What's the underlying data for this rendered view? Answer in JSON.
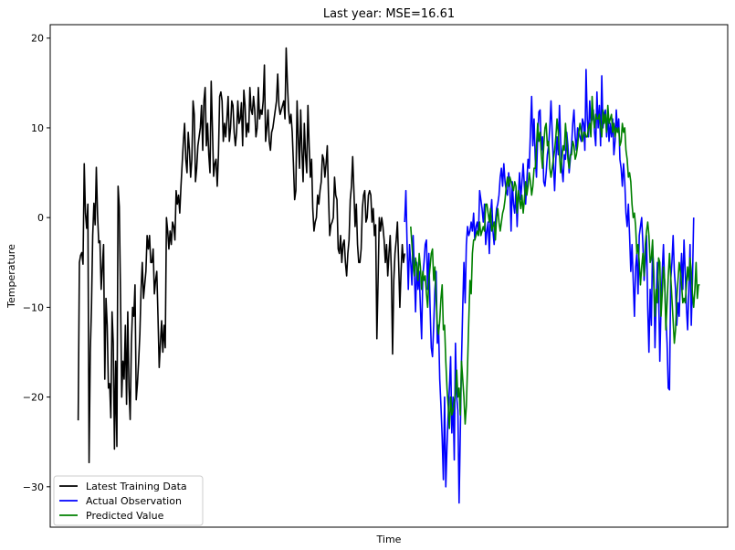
{
  "chart_data": {
    "type": "line",
    "title": "Last year: MSE=16.61",
    "xlabel": "Time",
    "ylabel": "Temperature",
    "ylim": [
      -34.5,
      21.5
    ],
    "yticks": [
      -30,
      -20,
      -10,
      0,
      10,
      20
    ],
    "xticks_visible": false,
    "grid": false,
    "legend_position": "lower-left",
    "series": [
      {
        "name": "Latest Training Data",
        "color": "#000000",
        "x_start": 0,
        "values": [
          -22.6,
          -5.0,
          -4.2,
          -3.9,
          -5.2,
          6.0,
          0.5,
          -1.2,
          1.5,
          -27.3,
          -15.0,
          -10.0,
          -2.0,
          1.6,
          -0.8,
          5.6,
          0.4,
          -2.8,
          -2.6,
          -8.0,
          -5.5,
          -3.0,
          -18.0,
          -9.0,
          -12.0,
          -19.0,
          -18.5,
          -22.3,
          -10.5,
          -14.0,
          -25.8,
          -16.0,
          -25.5,
          3.5,
          1.2,
          -8.5,
          -20.0,
          -16.0,
          -18.0,
          -12.0,
          -20.8,
          -10.5,
          -19.0,
          -22.5,
          -14.0,
          -10.0,
          -11.0,
          -7.5,
          -20.3,
          -18.5,
          -16.0,
          -13.0,
          -8.0,
          -5.0,
          -9.0,
          -7.5,
          -6.0,
          -2.0,
          -3.5,
          -2.0,
          -5.0,
          -5.0,
          -3.5,
          -8.5,
          -7.0,
          -6.0,
          -11.0,
          -16.7,
          -14.0,
          -11.5,
          -15.0,
          -12.0,
          -14.5,
          0.0,
          -1.5,
          -3.5,
          -1.5,
          -3.0,
          -0.5,
          -1.0,
          -2.5,
          3.0,
          1.5,
          2.5,
          0.5,
          3.5,
          6.0,
          8.5,
          10.5,
          6.5,
          5.0,
          9.5,
          7.5,
          4.5,
          6.5,
          13.0,
          11.5,
          4.0,
          5.5,
          8.0,
          9.0,
          10.0,
          12.5,
          7.5,
          13.0,
          14.5,
          8.0,
          10.5,
          7.0,
          5.0,
          15.2,
          10.0,
          4.6,
          6.0,
          6.5,
          3.5,
          7.0,
          13.5,
          14.0,
          13.0,
          8.5,
          10.5,
          9.0,
          11.0,
          13.5,
          8.5,
          10.0,
          13.0,
          12.5,
          9.5,
          8.0,
          9.5,
          13.0,
          10.5,
          11.0,
          12.8,
          8.0,
          14.2,
          12.5,
          9.0,
          10.5,
          9.5,
          14.5,
          12.0,
          11.5,
          13.5,
          12.0,
          9.0,
          10.0,
          14.5,
          11.0,
          12.0,
          11.5,
          13.0,
          17.0,
          8.5,
          10.0,
          12.0,
          8.5,
          7.5,
          9.5,
          10.0,
          11.0,
          12.0,
          13.0,
          16.0,
          12.5,
          11.5,
          12.0,
          12.5,
          13.0,
          11.0,
          18.9,
          15.0,
          12.0,
          10.5,
          11.5,
          9.5,
          6.0,
          2.0,
          3.0,
          13.0,
          9.0,
          5.5,
          12.0,
          7.5,
          4.0,
          10.5,
          7.0,
          5.0,
          12.5,
          8.0,
          4.5,
          6.5,
          1.0,
          -1.5,
          -0.5,
          0.0,
          2.5,
          1.5,
          3.0,
          4.0,
          7.0,
          6.5,
          4.5,
          6.0,
          8.0,
          2.5,
          -2.0,
          -0.8,
          -0.5,
          0.0,
          4.5,
          2.5,
          2.0,
          -3.5,
          -4.0,
          -2.0,
          -5.0,
          -3.0,
          -2.5,
          -5.0,
          -6.5,
          -4.0,
          -2.5,
          2.0,
          3.5,
          6.8,
          3.0,
          -1.0,
          1.5,
          -3.0,
          -5.0,
          -5.0,
          -3.5,
          1.0,
          2.5,
          3.0,
          -0.5,
          0.0,
          2.5,
          3.0,
          2.5,
          -0.5,
          1.0,
          -2.0,
          -0.8,
          -13.5,
          -7.0,
          0.0,
          -1.5,
          0.0,
          -1.0,
          -2.5,
          -5.0,
          -3.0,
          -6.5,
          -4.0,
          -2.0,
          -6.0,
          -15.2,
          -7.0,
          -4.0,
          -2.5,
          -0.5,
          -5.0,
          -10.0,
          -6.0,
          -3.0,
          -5.0,
          -4.0
        ]
      },
      {
        "name": "Actual Observation",
        "color": "#0000ff",
        "x_start": 270,
        "values": [
          -0.5,
          3.0,
          -3.0,
          -8.0,
          -3.0,
          -5.0,
          -7.5,
          -2.0,
          -6.0,
          -10.5,
          -5.0,
          -8.0,
          -6.0,
          -10.0,
          -13.5,
          -6.5,
          -5.0,
          -3.0,
          -2.5,
          -8.0,
          -4.0,
          -10.0,
          -14.5,
          -15.5,
          -12.0,
          -8.0,
          -6.0,
          -14.0,
          -12.0,
          -18.0,
          -21.0,
          -24.5,
          -29.2,
          -20.0,
          -30.0,
          -25.5,
          -22.0,
          -19.0,
          -15.5,
          -24.0,
          -20.0,
          -27.0,
          -14.0,
          -20.0,
          -21.5,
          -31.8,
          -24.0,
          -16.0,
          -10.0,
          -5.0,
          -9.5,
          -3.0,
          -1.0,
          -2.0,
          -1.5,
          -0.5,
          -1.5,
          0.5,
          -2.5,
          -1.0,
          -0.5,
          -2.0,
          3.0,
          2.0,
          1.0,
          -0.5,
          1.5,
          -3.0,
          -1.5,
          -0.5,
          -4.0,
          0.5,
          2.0,
          -1.5,
          -3.0,
          -0.5,
          1.0,
          1.5,
          2.5,
          4.5,
          5.5,
          3.5,
          6.0,
          4.0,
          3.0,
          2.5,
          5.0,
          3.5,
          -1.5,
          4.0,
          1.5,
          0.5,
          3.0,
          -1.0,
          2.5,
          5.0,
          2.0,
          4.0,
          6.0,
          3.5,
          1.5,
          4.0,
          6.5,
          5.5,
          9.5,
          13.5,
          8.0,
          11.0,
          6.5,
          4.5,
          9.0,
          11.8,
          12.0,
          7.5,
          9.0,
          4.0,
          3.5,
          5.0,
          7.0,
          8.0,
          10.0,
          13.0,
          9.5,
          6.0,
          3.0,
          6.5,
          9.0,
          7.0,
          12.5,
          8.5,
          5.5,
          4.0,
          7.0,
          6.5,
          9.5,
          8.0,
          5.0,
          6.5,
          8.0,
          10.5,
          12.0,
          9.0,
          7.5,
          10.0,
          9.5,
          9.0,
          8.5,
          11.0,
          10.5,
          7.5,
          16.5,
          11.0,
          9.0,
          13.0,
          10.5,
          11.0,
          12.0,
          9.5,
          8.0,
          14.0,
          10.0,
          12.5,
          8.0,
          15.8,
          10.0,
          11.5,
          12.0,
          9.0,
          11.5,
          8.5,
          10.5,
          9.0,
          11.0,
          7.0,
          8.5,
          12.0,
          9.5,
          11.0,
          6.5,
          5.5,
          3.5,
          6.0,
          4.0,
          0.5,
          -1.0,
          1.5,
          -2.0,
          -6.0,
          -3.0,
          -7.0,
          -11.0,
          -5.5,
          -4.0,
          -8.5,
          -2.0,
          -1.0,
          0.0,
          -3.0,
          -7.0,
          -5.0,
          -2.0,
          -10.0,
          -15.0,
          -8.0,
          -12.0,
          -3.0,
          -6.0,
          -14.5,
          -9.0,
          -5.0,
          -8.0,
          -16.0,
          -10.0,
          -6.0,
          -3.0,
          -7.5,
          -11.0,
          -14.0,
          -19.0,
          -19.2,
          -7.0,
          -5.0,
          -2.0,
          -6.0,
          -8.0,
          -12.0,
          -9.5,
          -11.0,
          -7.0,
          -4.0,
          -8.0,
          -2.5,
          -6.0,
          -10.0,
          -12.5,
          -8.0,
          -3.0,
          -12.0,
          -7.0,
          0.0
        ]
      },
      {
        "name": "Predicted Value",
        "color": "#008000",
        "x_start": 275,
        "values": [
          -1.0,
          -3.0,
          -5.0,
          -6.5,
          -4.5,
          -5.5,
          -7.0,
          -4.0,
          -5.5,
          -8.0,
          -6.0,
          -7.0,
          -6.5,
          -8.5,
          -10.0,
          -7.0,
          -5.5,
          -4.0,
          -3.5,
          -7.0,
          -5.5,
          -9.0,
          -12.0,
          -13.0,
          -11.5,
          -9.0,
          -7.5,
          -12.5,
          -12.0,
          -16.0,
          -19.0,
          -21.0,
          -23.5,
          -20.0,
          -22.0,
          -21.5,
          -20.5,
          -19.5,
          -17.0,
          -20.0,
          -19.0,
          -22.0,
          -16.0,
          -18.0,
          -20.0,
          -23.0,
          -21.0,
          -16.5,
          -11.5,
          -7.0,
          -8.5,
          -4.0,
          -2.5,
          -2.5,
          -2.0,
          -1.5,
          -2.0,
          -0.5,
          -2.0,
          -1.5,
          -1.0,
          -1.5,
          1.5,
          1.5,
          0.5,
          -0.5,
          1.0,
          -1.5,
          -1.0,
          -0.5,
          -2.5,
          0.0,
          1.0,
          -0.5,
          -1.5,
          -0.5,
          0.5,
          1.0,
          2.0,
          3.5,
          4.5,
          3.5,
          4.5,
          4.0,
          3.5,
          3.0,
          4.0,
          3.5,
          0.5,
          3.0,
          2.0,
          1.0,
          2.5,
          0.5,
          2.0,
          4.0,
          2.5,
          3.5,
          5.0,
          4.0,
          2.5,
          3.5,
          5.5,
          5.5,
          8.0,
          10.5,
          8.5,
          9.5,
          7.0,
          5.5,
          8.0,
          10.0,
          10.5,
          8.0,
          8.5,
          5.5,
          4.5,
          5.5,
          6.5,
          7.5,
          9.0,
          11.0,
          9.5,
          7.0,
          5.0,
          6.5,
          8.0,
          7.5,
          10.5,
          8.5,
          6.5,
          5.5,
          7.0,
          7.0,
          8.5,
          8.0,
          6.5,
          7.0,
          8.0,
          9.5,
          10.5,
          9.5,
          8.5,
          9.5,
          9.5,
          9.0,
          9.0,
          10.0,
          10.5,
          9.0,
          13.5,
          11.0,
          10.0,
          11.5,
          11.0,
          11.0,
          11.5,
          10.0,
          9.0,
          12.0,
          10.5,
          11.5,
          9.5,
          12.5,
          10.5,
          11.0,
          11.5,
          9.5,
          10.5,
          9.0,
          10.0,
          9.5,
          10.0,
          8.0,
          8.5,
          10.5,
          9.5,
          10.0,
          7.5,
          6.5,
          4.5,
          5.0,
          4.0,
          1.5,
          0.0,
          0.5,
          -1.0,
          -4.0,
          -3.0,
          -5.0,
          -7.5,
          -5.5,
          -4.0,
          -6.5,
          -3.0,
          -1.5,
          -0.5,
          -2.0,
          -5.0,
          -4.5,
          -2.5,
          -7.5,
          -11.0,
          -8.0,
          -9.5,
          -4.5,
          -5.0,
          -11.0,
          -8.5,
          -5.5,
          -7.0,
          -12.5,
          -9.5,
          -6.5,
          -4.0,
          -6.5,
          -9.0,
          -11.5,
          -14.0,
          -12.5,
          -9.0,
          -7.0,
          -5.0,
          -6.0,
          -7.5,
          -9.5,
          -9.0,
          -9.5,
          -7.5,
          -5.5,
          -7.0,
          -4.5,
          -6.0,
          -8.5,
          -10.0,
          -8.0,
          -5.0,
          -9.0,
          -7.5,
          -7.5
        ]
      }
    ]
  }
}
